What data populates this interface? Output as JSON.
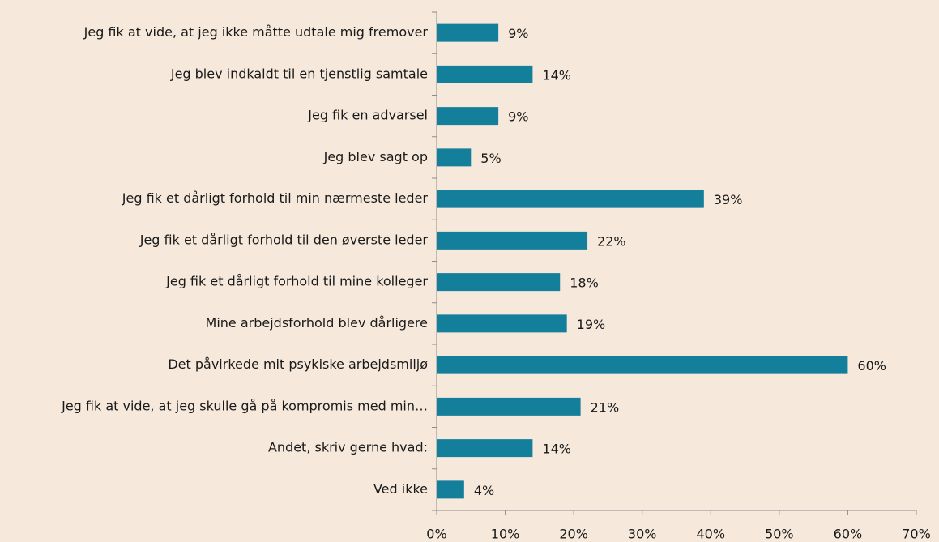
{
  "chart_data": {
    "type": "bar",
    "orientation": "horizontal",
    "categories": [
      "Jeg fik at vide, at jeg ikke måtte udtale mig fremover",
      "Jeg blev indkaldt til en tjenstlig samtale",
      "Jeg fik en advarsel",
      "Jeg blev sagt op",
      "Jeg fik et dårligt forhold til min nærmeste leder",
      "Jeg fik et dårligt forhold til den øverste leder",
      "Jeg fik et dårligt forhold til mine kolleger",
      "Mine arbejdsforhold blev dårligere",
      "Det påvirkede mit psykiske arbejdsmiljø",
      "Jeg fik at vide, at jeg skulle gå på kompromis med min…",
      "Andet, skriv gerne hvad:",
      "Ved ikke"
    ],
    "values": [
      9,
      14,
      9,
      5,
      39,
      22,
      18,
      19,
      60,
      21,
      14,
      4
    ],
    "value_labels": [
      "9%",
      "14%",
      "9%",
      "5%",
      "39%",
      "22%",
      "18%",
      "19%",
      "60%",
      "21%",
      "14%",
      "4%"
    ],
    "color": "#137f9b",
    "xlim": [
      0,
      70
    ],
    "xticks": [
      {
        "value": 0,
        "label": "0%"
      },
      {
        "value": 10,
        "label": "10%"
      },
      {
        "value": 20,
        "label": "20%"
      },
      {
        "value": 30,
        "label": "30%"
      },
      {
        "value": 40,
        "label": "40%"
      },
      {
        "value": 50,
        "label": "50%"
      },
      {
        "value": 60,
        "label": "60%"
      },
      {
        "value": 70,
        "label": "70%"
      }
    ]
  }
}
